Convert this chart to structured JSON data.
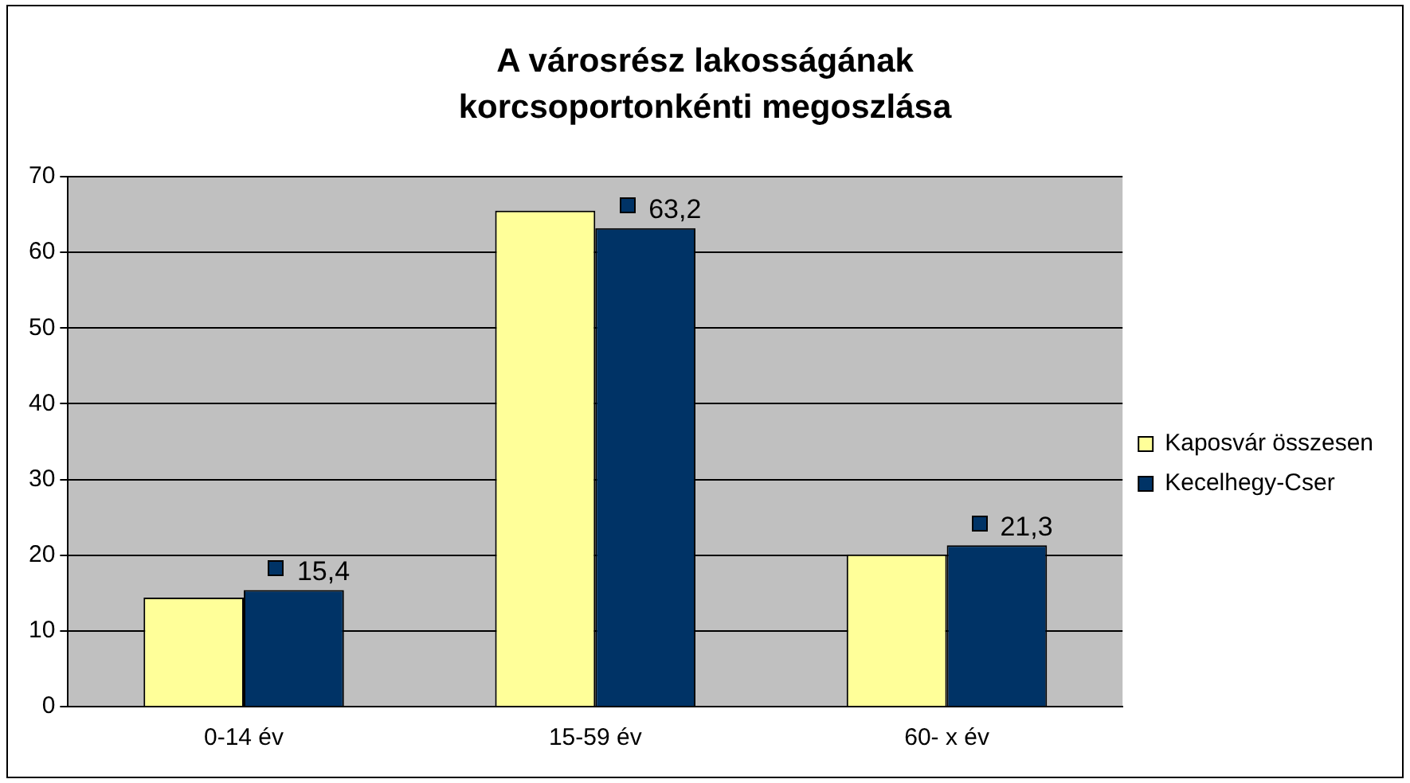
{
  "chart_data": {
    "type": "bar",
    "title": "A városrész lakosságának korcsoportonkénti megoszlása",
    "categories": [
      "0-14 év",
      "15-59 év",
      "60- x év"
    ],
    "series": [
      {
        "name": "Kaposvár összesen",
        "color": "#ffff99",
        "values": [
          14.4,
          65.5,
          20.1
        ]
      },
      {
        "name": "Kecelhegy-Cser",
        "color": "#003366",
        "values": [
          15.4,
          63.2,
          21.3
        ],
        "value_labels": [
          "15,4",
          "63,2",
          "21,3"
        ]
      }
    ],
    "ylim": [
      0,
      70
    ],
    "yticks": [
      0,
      10,
      20,
      30,
      40,
      50,
      60,
      70
    ],
    "grid": "y",
    "legend": "right"
  }
}
